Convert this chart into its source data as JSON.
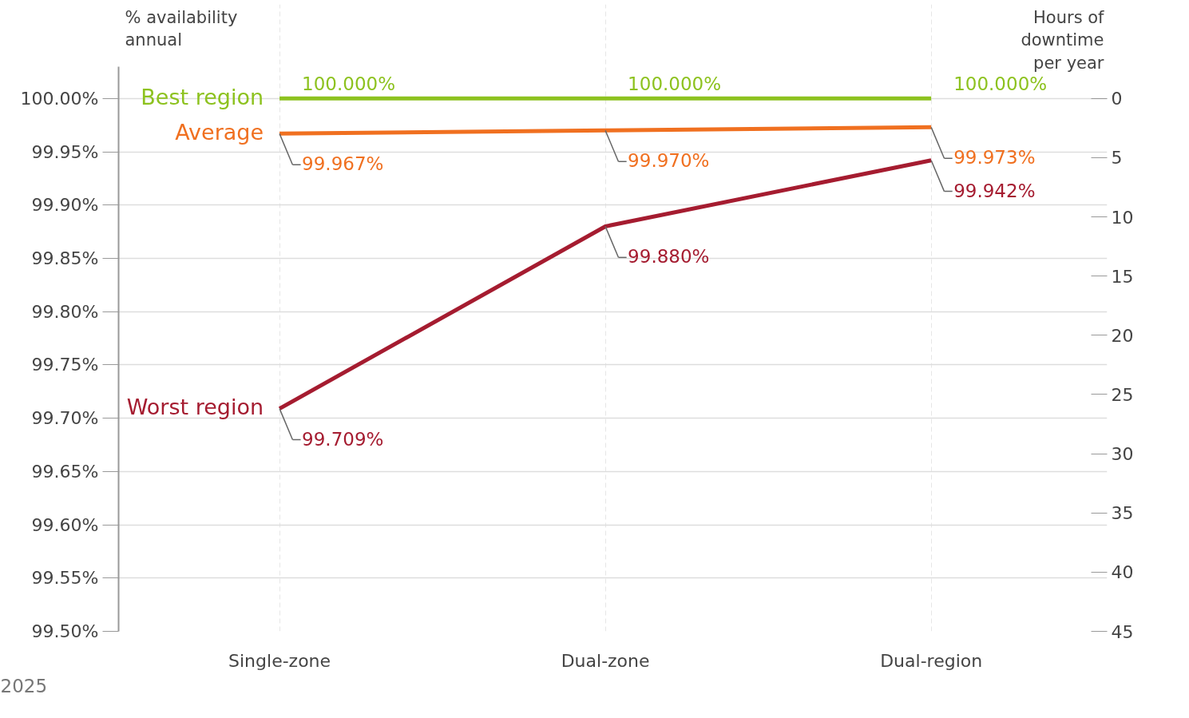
{
  "chart_data": {
    "type": "line",
    "categories": [
      "Single-zone",
      "Dual-zone",
      "Dual-region"
    ],
    "series": [
      {
        "name": "Best region",
        "color": "#8dc21f",
        "values": [
          100.0,
          100.0,
          100.0
        ],
        "value_labels": [
          "100.000%",
          "100.000%",
          "100.000%"
        ]
      },
      {
        "name": "Average",
        "color": "#f07020",
        "values": [
          99.967,
          99.97,
          99.973
        ],
        "value_labels": [
          "99.967%",
          "99.970%",
          "99.973%"
        ]
      },
      {
        "name": "Worst region",
        "color": "#a51c30",
        "values": [
          99.709,
          99.88,
          99.942
        ],
        "value_labels": [
          "99.709%",
          "99.880%",
          "99.942%"
        ]
      }
    ],
    "ylabel": "% availability\nannual",
    "y2label": "Hours of\ndowntime\nper year",
    "ylim": [
      99.5,
      100.03
    ],
    "yticks": [
      {
        "value": 99.5,
        "label": "99.50%"
      },
      {
        "value": 99.55,
        "label": "99.55%"
      },
      {
        "value": 99.6,
        "label": "99.60%"
      },
      {
        "value": 99.65,
        "label": "99.65%"
      },
      {
        "value": 99.7,
        "label": "99.70%"
      },
      {
        "value": 99.75,
        "label": "99.75%"
      },
      {
        "value": 99.8,
        "label": "99.80%"
      },
      {
        "value": 99.85,
        "label": "99.85%"
      },
      {
        "value": 99.9,
        "label": "99.90%"
      },
      {
        "value": 99.95,
        "label": "99.95%"
      },
      {
        "value": 100.0,
        "label": "100.00%"
      }
    ],
    "y2lim": [
      45,
      -2.7
    ],
    "y2ticks": [
      0,
      5,
      10,
      15,
      20,
      25,
      30,
      35,
      40,
      45
    ],
    "grid": true,
    "annotations": [
      "2025"
    ]
  }
}
